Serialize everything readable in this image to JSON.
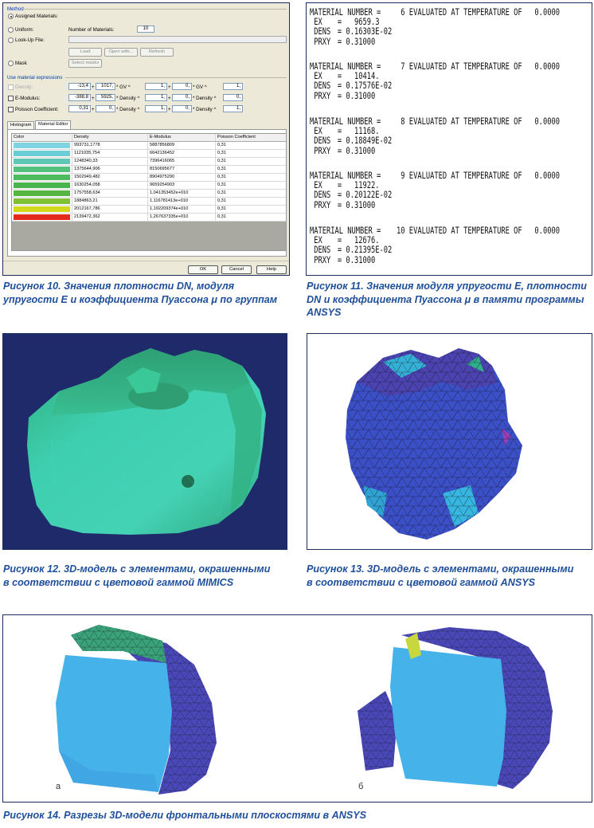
{
  "figure10": {
    "dialog": {
      "method_title": "Method",
      "options": {
        "assigned": "Assigned Materials:",
        "uniform": "Uniform:",
        "lookup": "Look-Up File:",
        "mask": "Mask"
      },
      "num_materials_label": "Number of Materials:",
      "num_materials_value": "10",
      "buttons_file": [
        "Load",
        "Open with...",
        "Refresh"
      ],
      "select_masks": "Select masks",
      "expr_title": "Use material expressions",
      "expressions": [
        {
          "label": "Density:",
          "a": "-13,4",
          "b": "1017,",
          "gv": "* GV ^",
          "e1": "1,",
          "c": "0,",
          "mid": "* GV ^",
          "e2": "1,"
        },
        {
          "label": "E-Modulus:",
          "a": "-388,8",
          "b": "5925,",
          "gv": "* Density ^",
          "e1": "1,",
          "c": "0,",
          "mid": "* Density ^",
          "e2": "0,"
        },
        {
          "label": "Poisson Coefficient:",
          "a": "0,31",
          "b": "0,",
          "gv": "* Density ^",
          "e1": "1,",
          "c": "0,",
          "mid": "* Density ^",
          "e2": "1,"
        }
      ],
      "tabs": [
        "Histogram",
        "Material Editor"
      ],
      "table": {
        "headers": [
          "Color",
          "Density",
          "E-Modulus",
          "Poisson Coefficient"
        ],
        "rows": [
          {
            "color": "#7fd4e2",
            "density": "993731,1778",
            "emod": "5887856809",
            "pois": "0,31"
          },
          {
            "color": "#69cdd6",
            "density": "1121035,754",
            "emod": "6642136452",
            "pois": "0,31"
          },
          {
            "color": "#5ec8b4",
            "density": "1248340,33",
            "emod": "7396416065",
            "pois": "0,31"
          },
          {
            "color": "#53c07c",
            "density": "1375644,906",
            "emod": "8150695677",
            "pois": "0,31"
          },
          {
            "color": "#4cbb5e",
            "density": "1502949,482",
            "emod": "8904975290",
            "pois": "0,31"
          },
          {
            "color": "#48b54c",
            "density": "1630254,058",
            "emod": "9659254903",
            "pois": "0,31"
          },
          {
            "color": "#56b540",
            "density": "1757558,634",
            "emod": "1,041353452e+010",
            "pois": "0,31"
          },
          {
            "color": "#80c034",
            "density": "1884863,21",
            "emod": "1,116781413e+010",
            "pois": "0,31"
          },
          {
            "color": "#d4d81a",
            "density": "2012167,786",
            "emod": "1,192209374e+010",
            "pois": "0,31"
          },
          {
            "color": "#e42a1c",
            "density": "2139472,362",
            "emod": "1,267637335e+010",
            "pois": "0,31"
          }
        ]
      },
      "footer_buttons": [
        "OK",
        "Cancel",
        "Help"
      ]
    },
    "caption": "Рисунок 10. Значения плотности DN, модуля упругости E и коэффициента Пуассона μ по группам"
  },
  "figure11": {
    "blocks": [
      {
        "num": "6",
        "ex": "9659.3",
        "dens": "0.16303E-02",
        "prxy": "0.31000"
      },
      {
        "num": "7",
        "ex": "10414.",
        "dens": "0.17576E-02",
        "prxy": "0.31000"
      },
      {
        "num": "8",
        "ex": "11168.",
        "dens": "0.18849E-02",
        "prxy": "0.31000"
      },
      {
        "num": "9",
        "ex": "11922.",
        "dens": "0.20122E-02",
        "prxy": "0.31000"
      },
      {
        "num": "10",
        "ex": "12676.",
        "dens": "0.21395E-02",
        "prxy": "0.31000"
      }
    ],
    "labels": {
      "material": "MATERIAL NUMBER =",
      "evaluated": "EVALUATED AT TEMPERATURE OF",
      "temp": "0.0000",
      "ex": "EX",
      "dens": "DENS",
      "prxy": "PRXY",
      "eq": "="
    },
    "caption": "Рисунок 11. Значения модуля упругости E, плотности DN и коэффициента Пуассона μ в памяти программы ANSYS"
  },
  "figure12": {
    "caption": "Рисунок 12. 3D-модель с элементами, окрашенными в соответствии с цветовой гаммой MIMICS",
    "colors": {
      "background": "#1f2a6b",
      "mesh": "#3fd0a8"
    }
  },
  "figure13": {
    "caption": "Рисунок 13. 3D-модель с элементами, окрашенными в соответствии с цветовой гаммой ANSYS",
    "colors": {
      "mesh": "#3b52c8",
      "accent": "#36b6e0"
    }
  },
  "figure14": {
    "label_a": "а",
    "label_b": "б",
    "caption": "Рисунок 14. Разрезы 3D-модели фронтальными плоскостями в ANSYS",
    "colors": {
      "cut": "#45b2ea",
      "mesh": "#4a48b8"
    }
  }
}
